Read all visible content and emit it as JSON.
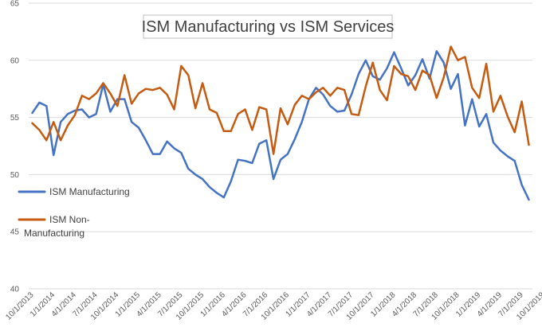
{
  "chart_data": {
    "type": "line",
    "title": "ISM Manufacturing vs ISM Services",
    "xlabel": "",
    "ylabel": "",
    "ylim": [
      40,
      65
    ],
    "yticks": [
      40,
      45,
      50,
      55,
      60,
      65
    ],
    "grid": true,
    "legend_position": "left",
    "x_tick_labels": [
      "10/1/2013",
      "1/1/2014",
      "4/1/2014",
      "7/1/2014",
      "10/1/2014",
      "1/1/2015",
      "4/1/2015",
      "7/1/2015",
      "10/1/2015",
      "1/1/2016",
      "4/1/2016",
      "7/1/2016",
      "10/1/2016",
      "1/1/2017",
      "4/1/2017",
      "7/1/2017",
      "10/1/2017",
      "1/1/2018",
      "4/1/2018",
      "7/1/2018",
      "10/1/2018",
      "1/1/2019",
      "4/1/2019",
      "7/1/2019",
      "10/1/2019"
    ],
    "series": [
      {
        "name": "ISM Manufacturing",
        "color": "#4472C4",
        "values": [
          55.4,
          56.3,
          56.0,
          51.7,
          54.6,
          55.3,
          55.6,
          55.7,
          55.0,
          55.3,
          57.9,
          55.5,
          56.6,
          56.6,
          54.6,
          54.1,
          53.0,
          51.8,
          51.8,
          52.9,
          52.3,
          51.9,
          50.5,
          50.0,
          49.6,
          48.9,
          48.4,
          48.0,
          49.4,
          51.3,
          51.2,
          51.0,
          52.7,
          53.0,
          49.6,
          51.3,
          51.8,
          53.1,
          54.6,
          56.6,
          57.6,
          57.0,
          56.0,
          55.5,
          55.6,
          57.0,
          58.8,
          60.0,
          58.6,
          58.3,
          59.3,
          60.7,
          59.3,
          57.8,
          58.7,
          60.1,
          58.4,
          60.8,
          59.8,
          57.5,
          58.8,
          54.3,
          56.6,
          54.2,
          55.3,
          52.8,
          52.1,
          51.6,
          51.2,
          49.1,
          47.8
        ]
      },
      {
        "name": "ISM Non-Manufacturing",
        "color": "#C55A11",
        "values": [
          54.5,
          53.9,
          53.0,
          54.6,
          53.0,
          54.3,
          55.2,
          56.9,
          56.6,
          57.1,
          58.0,
          57.1,
          56.0,
          58.7,
          56.2,
          57.1,
          57.5,
          57.4,
          57.6,
          57.0,
          55.7,
          59.5,
          58.7,
          55.8,
          58.0,
          55.7,
          55.4,
          53.8,
          53.8,
          55.3,
          55.7,
          53.9,
          55.9,
          55.7,
          51.8,
          55.8,
          54.4,
          56.1,
          56.9,
          56.6,
          57.2,
          57.6,
          56.9,
          57.6,
          57.4,
          55.3,
          55.2,
          57.7,
          59.8,
          57.4,
          56.5,
          59.5,
          58.8,
          58.6,
          57.4,
          59.1,
          58.7,
          56.7,
          58.5,
          61.2,
          60.0,
          60.3,
          57.6,
          56.7,
          59.7,
          55.5,
          56.9,
          55.1,
          53.7,
          56.4,
          52.6
        ]
      }
    ]
  }
}
